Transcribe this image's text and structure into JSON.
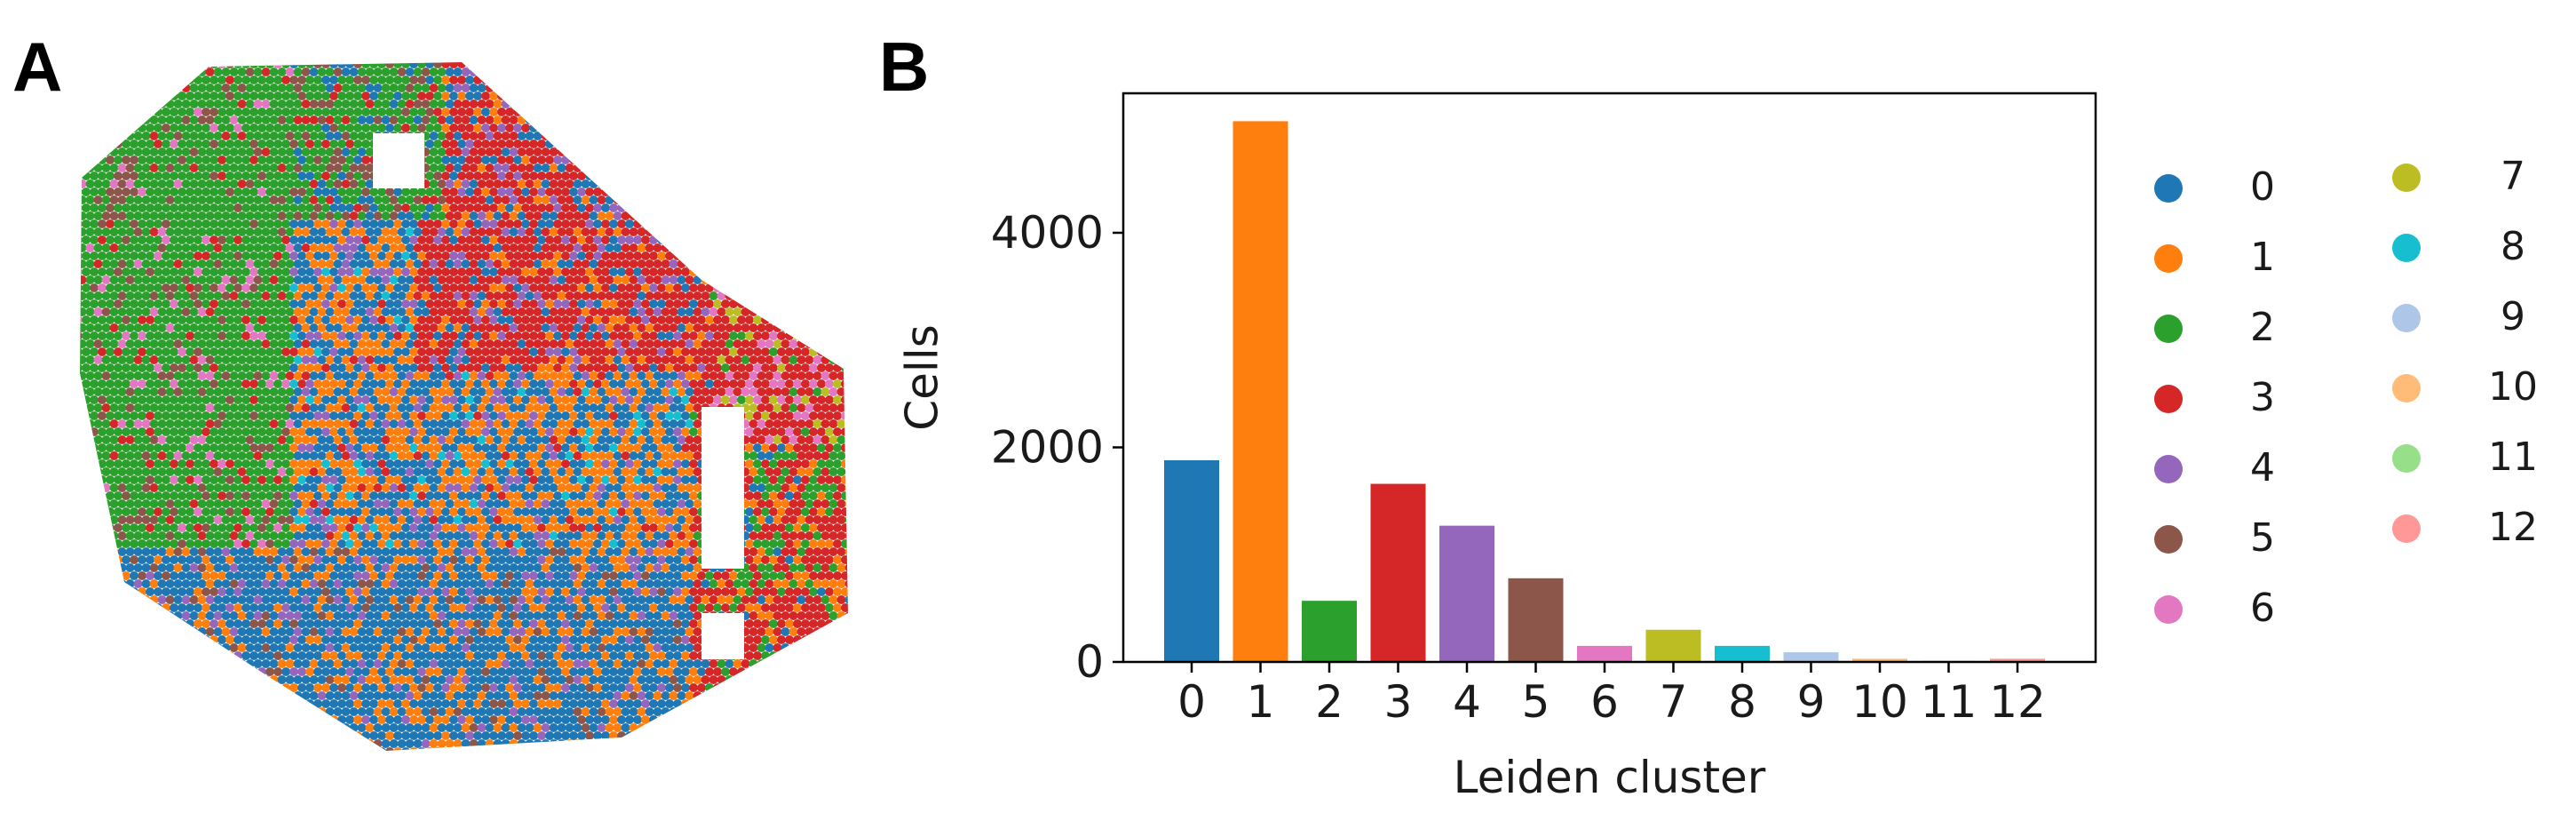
{
  "panels": {
    "a": "A",
    "b": "B"
  },
  "chart_data": [
    {
      "type": "scatter",
      "description_panel": "A",
      "categories": [
        "0",
        "1",
        "2",
        "3",
        "4",
        "5",
        "6",
        "7",
        "8",
        "9",
        "10",
        "11",
        "12"
      ],
      "colors": [
        "#1f77b4",
        "#ff7f0e",
        "#2ca02c",
        "#d62728",
        "#9467bd",
        "#8c564b",
        "#e377c2",
        "#bcbd22",
        "#17becf",
        "#aec7e8",
        "#ffbb78",
        "#98df8a",
        "#ff9896"
      ],
      "axes_visible": false
    },
    {
      "type": "bar",
      "categories": [
        "0",
        "1",
        "2",
        "3",
        "4",
        "5",
        "6",
        "7",
        "8",
        "9",
        "10",
        "11",
        "12"
      ],
      "values": [
        1880,
        5040,
        570,
        1660,
        1270,
        780,
        150,
        300,
        150,
        90,
        30,
        10,
        30
      ],
      "colors": [
        "#1f77b4",
        "#ff7f0e",
        "#2ca02c",
        "#d62728",
        "#9467bd",
        "#8c564b",
        "#e377c2",
        "#bcbd22",
        "#17becf",
        "#aec7e8",
        "#ffbb78",
        "#98df8a",
        "#ff9896"
      ],
      "xlabel": "Leiden cluster",
      "ylabel": "Cells",
      "ylim": [
        0,
        5300
      ],
      "yticks": [
        0,
        2000,
        4000
      ],
      "grid": false,
      "legend": {
        "placement": "right",
        "entries": [
          "0",
          "1",
          "2",
          "3",
          "4",
          "5",
          "6",
          "7",
          "8",
          "9",
          "10",
          "11",
          "12"
        ]
      }
    }
  ]
}
